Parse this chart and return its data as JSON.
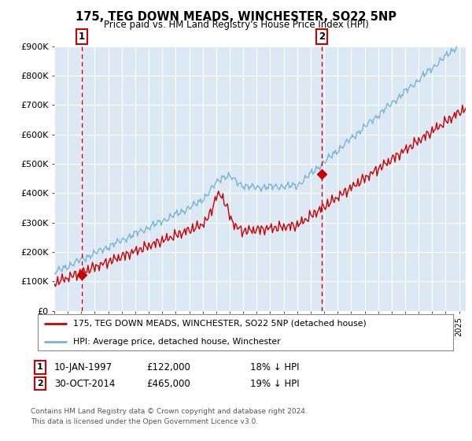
{
  "title": "175, TEG DOWN MEADS, WINCHESTER, SO22 5NP",
  "subtitle": "Price paid vs. HM Land Registry's House Price Index (HPI)",
  "xlim_start": 1995.0,
  "xlim_end": 2025.5,
  "ylim": [
    0,
    900000
  ],
  "yticks": [
    0,
    100000,
    200000,
    300000,
    400000,
    500000,
    600000,
    700000,
    800000,
    900000
  ],
  "ytick_labels": [
    "£0",
    "£100K",
    "£200K",
    "£300K",
    "£400K",
    "£500K",
    "£600K",
    "£700K",
    "£800K",
    "£900K"
  ],
  "sale1_date": 1997.03,
  "sale1_price": 122000,
  "sale1_label": "1",
  "sale2_date": 2014.83,
  "sale2_price": 465000,
  "sale2_label": "2",
  "hpi_color": "#7ab3d4",
  "price_color": "#cc0000",
  "marker_color": "#cc0000",
  "vline_color": "#cc0000",
  "background_color": "#dce9f5",
  "grid_color": "#ffffff",
  "legend1_text": "175, TEG DOWN MEADS, WINCHESTER, SO22 5NP (detached house)",
  "legend2_text": "HPI: Average price, detached house, Winchester",
  "note1_label": "1",
  "note1_date": "10-JAN-1997",
  "note1_price": "£122,000",
  "note1_hpi": "18% ↓ HPI",
  "note2_label": "2",
  "note2_date": "30-OCT-2014",
  "note2_price": "£465,000",
  "note2_hpi": "19% ↓ HPI",
  "footer": "Contains HM Land Registry data © Crown copyright and database right 2024.\nThis data is licensed under the Open Government Licence v3.0."
}
